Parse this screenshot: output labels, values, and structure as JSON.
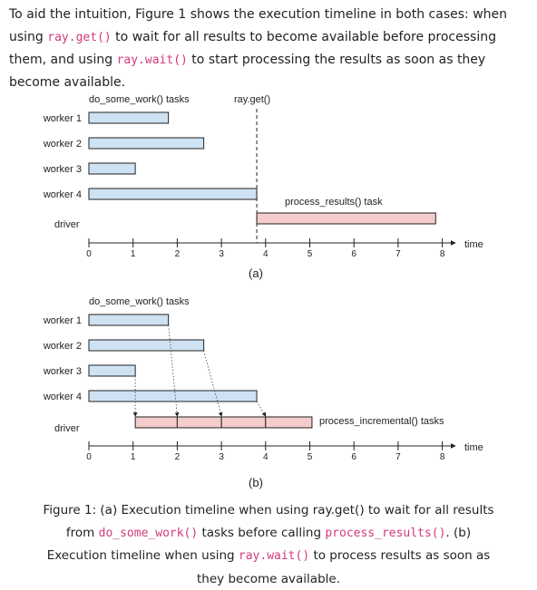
{
  "paragraph": {
    "t1": "To aid the intuition, Figure 1 shows the execution timeline in both cases: when using ",
    "c1": "ray.get()",
    "t2": " to wait for all results to become available before processing them, and using ",
    "c2": "ray.wait()",
    "t3": " to start processing the results as soon as they become available."
  },
  "figure_a": {
    "tasks_label": "do_some_work() tasks",
    "rayget_label": "ray.get()",
    "process_label": "process_results() task",
    "driver_label": "driver",
    "sublabel": "(a)"
  },
  "figure_b": {
    "tasks_label": "do_some_work() tasks",
    "process_label": "process_incremental() tasks",
    "driver_label": "driver",
    "sublabel": "(b)"
  },
  "axis_label": "time",
  "chart_data": [
    {
      "type": "bar",
      "panel": "a",
      "categories": [
        "worker 1",
        "worker 2",
        "worker 3",
        "worker 4"
      ],
      "worker_tasks": [
        {
          "start": 0,
          "end": 1.8
        },
        {
          "start": 0,
          "end": 2.6
        },
        {
          "start": 0,
          "end": 1.05
        },
        {
          "start": 0,
          "end": 3.8
        }
      ],
      "driver_tasks": [
        {
          "start": 3.8,
          "end": 7.85
        }
      ],
      "rayget_marker": 3.8,
      "xticks": [
        0,
        1,
        2,
        3,
        4,
        5,
        6,
        7,
        8
      ],
      "xlim": [
        0,
        8
      ]
    },
    {
      "type": "bar",
      "panel": "b",
      "categories": [
        "worker 1",
        "worker 2",
        "worker 3",
        "worker 4"
      ],
      "worker_tasks": [
        {
          "start": 0,
          "end": 1.8
        },
        {
          "start": 0,
          "end": 2.6
        },
        {
          "start": 0,
          "end": 1.05
        },
        {
          "start": 0,
          "end": 3.8
        }
      ],
      "driver_tasks": [
        {
          "start": 1.05,
          "end": 2.0
        },
        {
          "start": 2.0,
          "end": 3.0
        },
        {
          "start": 3.0,
          "end": 4.0
        },
        {
          "start": 4.0,
          "end": 5.05
        }
      ],
      "xticks": [
        0,
        1,
        2,
        3,
        4,
        5,
        6,
        7,
        8
      ],
      "xlim": [
        0,
        8
      ]
    }
  ],
  "caption": {
    "t1": "Figure 1: (a) Execution timeline when using ray.get() to wait for all results from ",
    "c1": "do_some_work()",
    "t2": " tasks before calling ",
    "c2": "process_results()",
    "t3": ". (b) Execution timeline when using ",
    "c3": "ray.wait()",
    "t4": " to process results as soon as they become available."
  },
  "colors": {
    "worker_fill": "#cfe2f3",
    "driver_fill": "#f4cccc",
    "code": "#d23a7a"
  }
}
